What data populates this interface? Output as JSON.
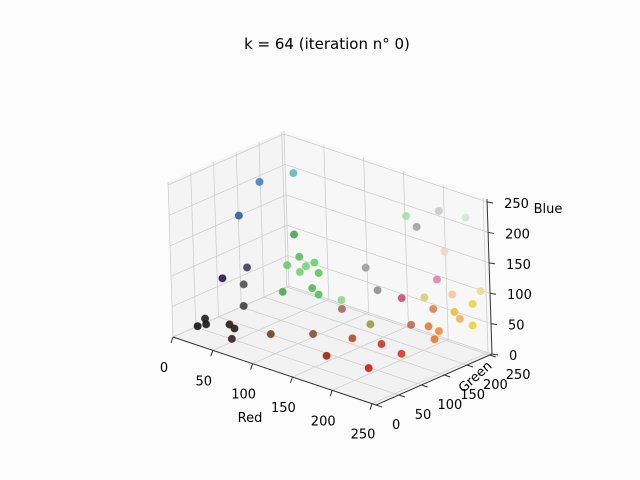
{
  "chart_data": {
    "type": "scatter3d",
    "title": "k = 64 (iteration n° 0)",
    "xlabel": "Red",
    "ylabel": "Green",
    "zlabel": "Blue",
    "xlim": [
      0,
      255
    ],
    "ylim": [
      0,
      255
    ],
    "zlim": [
      0,
      255
    ],
    "xticks": [
      "0",
      "50",
      "100",
      "150",
      "200",
      "250"
    ],
    "yticks": [
      "0",
      "50",
      "100",
      "150",
      "200",
      "250"
    ],
    "zticks": [
      "0",
      "50",
      "100",
      "150",
      "200",
      "250"
    ],
    "grid": true,
    "points": [
      {
        "r": 20,
        "g": 20,
        "b": 20,
        "color": "#141414"
      },
      {
        "r": 25,
        "g": 30,
        "b": 22,
        "color": "#1a1a1a"
      },
      {
        "r": 18,
        "g": 40,
        "b": 25,
        "color": "#202020"
      },
      {
        "r": 40,
        "g": 55,
        "b": 20,
        "color": "#2a1a14"
      },
      {
        "r": 55,
        "g": 40,
        "b": 25,
        "color": "#2c1a16"
      },
      {
        "r": 60,
        "g": 25,
        "b": 15,
        "color": "#3a2016"
      },
      {
        "r": 50,
        "g": 70,
        "b": 50,
        "color": "#404040"
      },
      {
        "r": 45,
        "g": 80,
        "b": 80,
        "color": "#505050"
      },
      {
        "r": 30,
        "g": 60,
        "b": 90,
        "color": "#2a1650"
      },
      {
        "r": 50,
        "g": 80,
        "b": 110,
        "color": "#3f3a66"
      },
      {
        "r": 30,
        "g": 100,
        "b": 180,
        "color": "#2e5e9e"
      },
      {
        "r": 40,
        "g": 130,
        "b": 230,
        "color": "#3f84c8"
      },
      {
        "r": 60,
        "g": 170,
        "b": 240,
        "color": "#5fb6c0"
      },
      {
        "r": 70,
        "g": 150,
        "b": 150,
        "color": "#50a050"
      },
      {
        "r": 70,
        "g": 160,
        "b": 110,
        "color": "#5cbf5c"
      },
      {
        "r": 60,
        "g": 150,
        "b": 95,
        "color": "#66cc66"
      },
      {
        "r": 75,
        "g": 165,
        "b": 95,
        "color": "#72d372"
      },
      {
        "r": 80,
        "g": 175,
        "b": 100,
        "color": "#6ccf6c"
      },
      {
        "r": 70,
        "g": 160,
        "b": 85,
        "color": "#70d070"
      },
      {
        "r": 85,
        "g": 175,
        "b": 85,
        "color": "#62c462"
      },
      {
        "r": 85,
        "g": 160,
        "b": 65,
        "color": "#58b858"
      },
      {
        "r": 90,
        "g": 165,
        "b": 55,
        "color": "#5ac05a"
      },
      {
        "r": 65,
        "g": 130,
        "b": 60,
        "color": "#4ea84e"
      },
      {
        "r": 110,
        "g": 180,
        "b": 50,
        "color": "#8ad88a"
      },
      {
        "r": 95,
        "g": 50,
        "b": 30,
        "color": "#6e4020"
      },
      {
        "r": 140,
        "g": 65,
        "b": 45,
        "color": "#8e4a32"
      },
      {
        "r": 160,
        "g": 95,
        "b": 85,
        "color": "#a06a5a"
      },
      {
        "r": 145,
        "g": 175,
        "b": 120,
        "color": "#9a9a9a"
      },
      {
        "r": 165,
        "g": 165,
        "b": 95,
        "color": "#8f8f8f"
      },
      {
        "r": 175,
        "g": 130,
        "b": 55,
        "color": "#9a9a40"
      },
      {
        "r": 165,
        "g": 50,
        "b": 25,
        "color": "#a02010"
      },
      {
        "r": 175,
        "g": 90,
        "b": 45,
        "color": "#b05028"
      },
      {
        "r": 215,
        "g": 55,
        "b": 25,
        "color": "#c81e10"
      },
      {
        "r": 200,
        "g": 110,
        "b": 40,
        "color": "#c43a1e"
      },
      {
        "r": 225,
        "g": 110,
        "b": 35,
        "color": "#d23c1c"
      },
      {
        "r": 215,
        "g": 150,
        "b": 65,
        "color": "#b86a4e"
      },
      {
        "r": 210,
        "g": 140,
        "b": 110,
        "color": "#cc4a7a"
      },
      {
        "r": 240,
        "g": 145,
        "b": 75,
        "color": "#e07a38"
      },
      {
        "r": 235,
        "g": 165,
        "b": 95,
        "color": "#e08040"
      },
      {
        "r": 250,
        "g": 140,
        "b": 60,
        "color": "#ea7a30"
      },
      {
        "r": 250,
        "g": 150,
        "b": 70,
        "color": "#f08840"
      },
      {
        "r": 245,
        "g": 205,
        "b": 70,
        "color": "#f0b060"
      },
      {
        "r": 250,
        "g": 185,
        "b": 90,
        "color": "#e8c040"
      },
      {
        "r": 255,
        "g": 215,
        "b": 60,
        "color": "#f0d040"
      },
      {
        "r": 250,
        "g": 225,
        "b": 90,
        "color": "#f0d040"
      },
      {
        "r": 245,
        "g": 190,
        "b": 115,
        "color": "#f0c8a0"
      },
      {
        "r": 255,
        "g": 235,
        "b": 110,
        "color": "#ecd890"
      },
      {
        "r": 230,
        "g": 155,
        "b": 115,
        "color": "#d0d070"
      },
      {
        "r": 235,
        "g": 175,
        "b": 140,
        "color": "#e080b0"
      },
      {
        "r": 225,
        "g": 210,
        "b": 170,
        "color": "#f2d6b8"
      },
      {
        "r": 185,
        "g": 220,
        "b": 190,
        "color": "#a0a0a0"
      },
      {
        "r": 205,
        "g": 235,
        "b": 220,
        "color": "#c8c8c8"
      },
      {
        "r": 175,
        "g": 215,
        "b": 205,
        "color": "#a8e0a8"
      },
      {
        "r": 230,
        "g": 250,
        "b": 215,
        "color": "#d0e8d0"
      }
    ]
  }
}
